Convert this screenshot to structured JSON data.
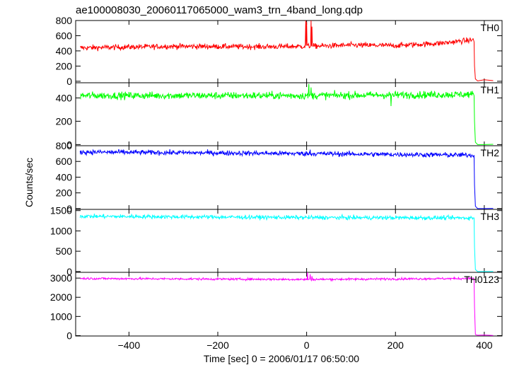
{
  "title": "ae100008030_20060117065000_wam3_trn_4band_long.qdp",
  "ylabel": "Counts/sec",
  "xlabel": "Time [sec] 0 = 2006/01/17 06:50:00",
  "chart_data": {
    "type": "line",
    "title": "ae100008030_20060117065000_wam3_trn_4band_long.qdp",
    "xlabel": "Time [sec] 0 = 2006/01/17 06:50:00",
    "ylabel": "Counts/sec",
    "xlim": [
      -520,
      440
    ],
    "x_ticks": [
      -400,
      -200,
      0,
      200,
      400
    ],
    "x_tick_labels": [
      "−400",
      "−200",
      "0",
      "200",
      "400"
    ],
    "data_range": [
      -510,
      375
    ],
    "cutoff_x": 377,
    "panels": [
      {
        "name": "TH0",
        "color": "#ff0000",
        "ylim": [
          -20,
          800
        ],
        "y_ticks": [
          0,
          200,
          400,
          600,
          800
        ],
        "y_tick_labels": [
          "0",
          "200",
          "400",
          "600",
          "800"
        ],
        "trend": [
          [
            -510,
            440
          ],
          [
            -300,
            460
          ],
          [
            -100,
            455
          ],
          [
            0,
            460
          ],
          [
            100,
            475
          ],
          [
            200,
            470
          ],
          [
            300,
            500
          ],
          [
            375,
            545
          ]
        ],
        "noise": 25,
        "spikes": [
          [
            -2,
            800
          ],
          [
            0,
            780
          ],
          [
            10,
            800
          ],
          [
            12,
            720
          ]
        ],
        "tail": [
          [
            377,
            520
          ],
          [
            378,
            200
          ],
          [
            380,
            30
          ],
          [
            385,
            5
          ],
          [
            400,
            20
          ],
          [
            420,
            8
          ]
        ]
      },
      {
        "name": "TH1",
        "color": "#00ff00",
        "ylim": [
          -10,
          530
        ],
        "y_ticks": [
          0,
          200,
          400
        ],
        "y_tick_labels": [
          "0",
          "200",
          "400"
        ],
        "trend": [
          [
            -510,
            420
          ],
          [
            0,
            420
          ],
          [
            375,
            430
          ]
        ],
        "noise": 22,
        "spikes": [
          [
            5,
            520
          ],
          [
            10,
            490
          ],
          [
            190,
            330
          ]
        ],
        "tail": [
          [
            377,
            420
          ],
          [
            378,
            200
          ],
          [
            380,
            20
          ],
          [
            385,
            0
          ],
          [
            400,
            0
          ],
          [
            420,
            2
          ]
        ]
      },
      {
        "name": "TH2",
        "color": "#0000ff",
        "ylim": [
          -10,
          800
        ],
        "y_ticks": [
          0,
          200,
          400,
          600,
          800
        ],
        "y_tick_labels": [
          "0",
          "200",
          "400",
          "600",
          "800"
        ],
        "trend": [
          [
            -510,
            720
          ],
          [
            0,
            700
          ],
          [
            375,
            680
          ]
        ],
        "noise": 22,
        "spikes": [
          [
            8,
            750
          ]
        ],
        "tail": [
          [
            377,
            680
          ],
          [
            378,
            300
          ],
          [
            380,
            30
          ],
          [
            385,
            0
          ],
          [
            400,
            0
          ],
          [
            420,
            2
          ]
        ]
      },
      {
        "name": "TH3",
        "color": "#00ffff",
        "ylim": [
          -20,
          1530
        ],
        "y_ticks": [
          0,
          500,
          1000,
          1500
        ],
        "y_tick_labels": [
          "0",
          "500",
          "1000",
          "1500"
        ],
        "trend": [
          [
            -510,
            1360
          ],
          [
            0,
            1330
          ],
          [
            375,
            1320
          ]
        ],
        "noise": 35,
        "spikes": [],
        "tail": [
          [
            377,
            1320
          ],
          [
            378,
            600
          ],
          [
            380,
            50
          ],
          [
            385,
            0
          ],
          [
            400,
            0
          ],
          [
            420,
            2
          ]
        ]
      },
      {
        "name": "TH0123",
        "color": "#ff00ff",
        "ylim": [
          -20,
          3300
        ],
        "y_ticks": [
          0,
          1000,
          2000,
          3000
        ],
        "y_tick_labels": [
          "0",
          "1000",
          "2000",
          "3000"
        ],
        "trend": [
          [
            -510,
            2980
          ],
          [
            0,
            2930
          ],
          [
            375,
            2980
          ]
        ],
        "noise": 40,
        "spikes": [
          [
            2,
            3300
          ],
          [
            8,
            3200
          ],
          [
            12,
            3100
          ]
        ],
        "tail": [
          [
            377,
            2950
          ],
          [
            378,
            1500
          ],
          [
            380,
            60
          ],
          [
            385,
            20
          ],
          [
            400,
            30
          ],
          [
            420,
            10
          ]
        ]
      }
    ]
  }
}
